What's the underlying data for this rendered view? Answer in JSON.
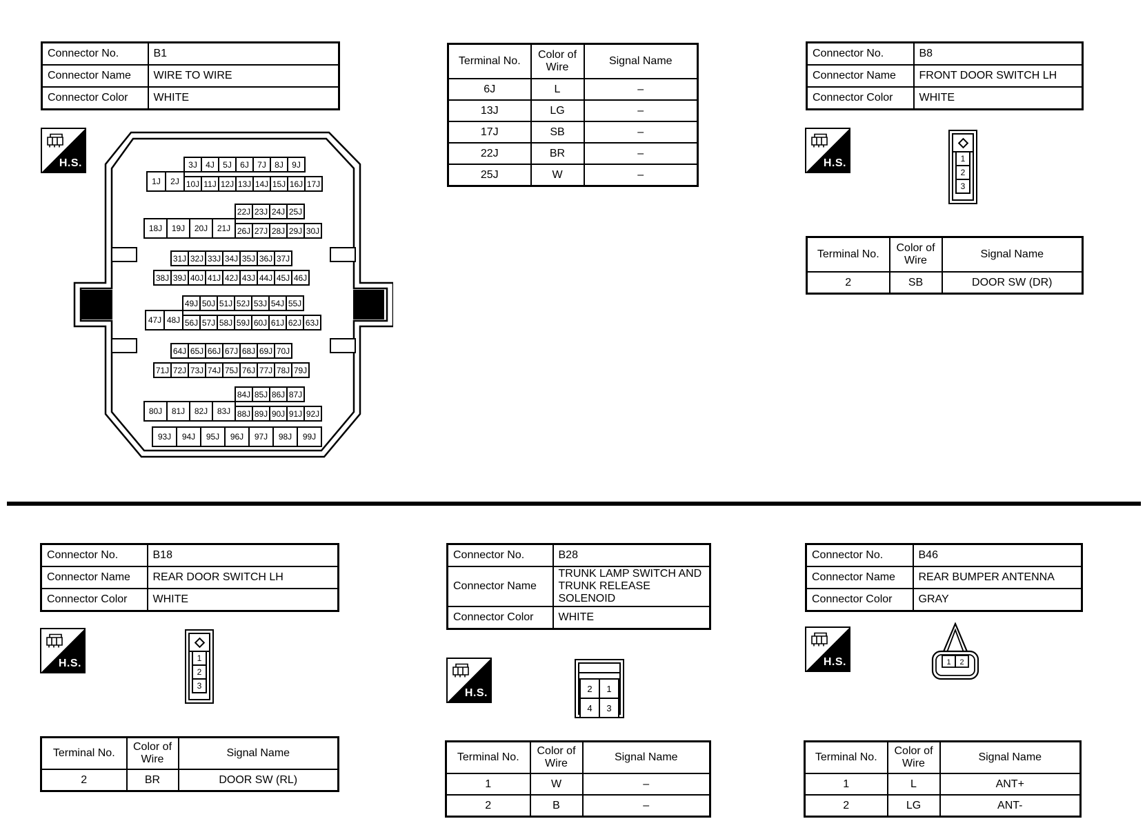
{
  "labels": {
    "connector_no": "Connector No.",
    "connector_name": "Connector Name",
    "connector_color": "Connector Color",
    "terminal_no": "Terminal No.",
    "color_of_wire": "Color of Wire",
    "signal_name": "Signal Name",
    "hs": "H.S."
  },
  "sections": {
    "b1": {
      "connector_no": "B1",
      "connector_name": "WIRE TO WIRE",
      "connector_color": "WHITE",
      "terminals": [
        {
          "no": "6J",
          "color": "L",
          "signal": "–"
        },
        {
          "no": "13J",
          "color": "LG",
          "signal": "–"
        },
        {
          "no": "17J",
          "color": "SB",
          "signal": "–"
        },
        {
          "no": "22J",
          "color": "BR",
          "signal": "–"
        },
        {
          "no": "25J",
          "color": "W",
          "signal": "–"
        }
      ],
      "pin_groups": [
        {
          "top": [
            "3J",
            "4J",
            "5J",
            "6J",
            "7J",
            "8J",
            "9J"
          ],
          "bottom": [
            "1J",
            "2J",
            "10J",
            "11J",
            "12J",
            "13J",
            "14J",
            "15J",
            "16J",
            "17J"
          ],
          "wide": 2,
          "top_offset": 0
        },
        {
          "top": [
            "22J",
            "23J",
            "24J",
            "25J"
          ],
          "bottom": [
            "18J",
            "19J",
            "20J",
            "21J",
            "26J",
            "27J",
            "28J",
            "29J",
            "30J"
          ],
          "wide": 4,
          "top_offset": 0
        },
        {
          "top": [
            "31J",
            "32J",
            "33J",
            "34J",
            "35J",
            "36J",
            "37J"
          ],
          "bottom": [
            "38J",
            "39J",
            "40J",
            "41J",
            "42J",
            "43J",
            "44J",
            "45J",
            "46J"
          ],
          "wide": 0,
          "top_offset": 1
        },
        {
          "top": [
            "49J",
            "50J",
            "51J",
            "52J",
            "53J",
            "54J",
            "55J"
          ],
          "bottom": [
            "47J",
            "48J",
            "56J",
            "57J",
            "58J",
            "59J",
            "60J",
            "61J",
            "62J",
            "63J"
          ],
          "wide": 2,
          "top_offset": 0
        },
        {
          "top": [
            "64J",
            "65J",
            "66J",
            "67J",
            "68J",
            "69J",
            "70J"
          ],
          "bottom": [
            "71J",
            "72J",
            "73J",
            "74J",
            "75J",
            "76J",
            "77J",
            "78J",
            "79J"
          ],
          "wide": 0,
          "top_offset": 1
        },
        {
          "top": [
            "84J",
            "85J",
            "86J",
            "87J"
          ],
          "bottom": [
            "80J",
            "81J",
            "82J",
            "83J",
            "88J",
            "89J",
            "90J",
            "91J",
            "92J"
          ],
          "wide": 4,
          "top_offset": 0
        },
        {
          "top": [],
          "bottom": [
            "93J",
            "94J",
            "95J",
            "96J",
            "97J",
            "98J",
            "99J"
          ],
          "wide": 7,
          "top_offset": 0
        }
      ]
    },
    "b8": {
      "connector_no": "B8",
      "connector_name": "FRONT DOOR SWITCH LH",
      "connector_color": "WHITE",
      "cavities": [
        "1",
        "2",
        "3"
      ],
      "terminals": [
        {
          "no": "2",
          "color": "SB",
          "signal": "DOOR SW (DR)"
        }
      ]
    },
    "b18": {
      "connector_no": "B18",
      "connector_name": "REAR DOOR SWITCH LH",
      "connector_color": "WHITE",
      "cavities": [
        "1",
        "2",
        "3"
      ],
      "terminals": [
        {
          "no": "2",
          "color": "BR",
          "signal": "DOOR SW (RL)"
        }
      ]
    },
    "b28": {
      "connector_no": "B28",
      "connector_name": "TRUNK LAMP SWITCH AND TRUNK RELEASE SOLENOID",
      "connector_color": "WHITE",
      "cavities": [
        "2",
        "1",
        "4",
        "3"
      ],
      "terminals": [
        {
          "no": "1",
          "color": "W",
          "signal": "–"
        },
        {
          "no": "2",
          "color": "B",
          "signal": "–"
        }
      ]
    },
    "b46": {
      "connector_no": "B46",
      "connector_name": "REAR BUMPER ANTENNA",
      "connector_color": "GRAY",
      "cavities": [
        "1",
        "2"
      ],
      "terminals": [
        {
          "no": "1",
          "color": "L",
          "signal": "ANT+"
        },
        {
          "no": "2",
          "color": "LG",
          "signal": "ANT-"
        }
      ]
    }
  }
}
